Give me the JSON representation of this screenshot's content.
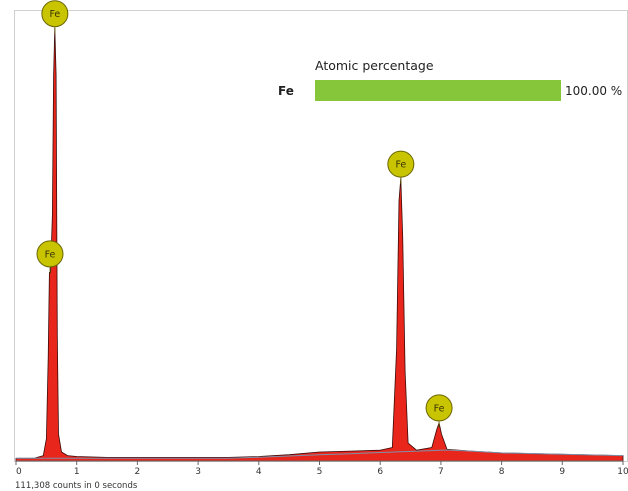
{
  "chart_data": {
    "type": "area",
    "title": "",
    "xlabel": "",
    "ylabel": "",
    "xlim": [
      0,
      10
    ],
    "ylim": [
      0,
      1
    ],
    "x_ticks": [
      "0",
      "1",
      "2",
      "3",
      "4",
      "5",
      "6",
      "7",
      "8",
      "9",
      "10"
    ],
    "status_text": "111,308 counts in 0 seconds",
    "fill_color": "#e8261c",
    "outline_color": "#3a0a08",
    "background_curve_color": "#7f8fa8",
    "peak_marker_fill": "#c9c400",
    "series": [
      {
        "points": [
          [
            0.0,
            0.006
          ],
          [
            0.3,
            0.006
          ],
          [
            0.45,
            0.012
          ],
          [
            0.5,
            0.05
          ],
          [
            0.53,
            0.23
          ],
          [
            0.55,
            0.42
          ],
          [
            0.57,
            0.42
          ],
          [
            0.6,
            0.55
          ],
          [
            0.62,
            0.86
          ],
          [
            0.64,
            0.965
          ],
          [
            0.66,
            0.86
          ],
          [
            0.68,
            0.28
          ],
          [
            0.7,
            0.06
          ],
          [
            0.75,
            0.02
          ],
          [
            0.85,
            0.012
          ],
          [
            1.0,
            0.01
          ],
          [
            1.5,
            0.008
          ],
          [
            2.0,
            0.008
          ],
          [
            2.5,
            0.008
          ],
          [
            3.0,
            0.008
          ],
          [
            3.5,
            0.008
          ],
          [
            4.0,
            0.01
          ],
          [
            4.5,
            0.014
          ],
          [
            5.0,
            0.02
          ],
          [
            5.5,
            0.022
          ],
          [
            6.0,
            0.024
          ],
          [
            6.2,
            0.03
          ],
          [
            6.27,
            0.25
          ],
          [
            6.31,
            0.58
          ],
          [
            6.34,
            0.63
          ],
          [
            6.37,
            0.5
          ],
          [
            6.41,
            0.2
          ],
          [
            6.46,
            0.04
          ],
          [
            6.6,
            0.024
          ],
          [
            6.85,
            0.03
          ],
          [
            6.93,
            0.07
          ],
          [
            6.97,
            0.085
          ],
          [
            7.01,
            0.06
          ],
          [
            7.1,
            0.026
          ],
          [
            7.5,
            0.022
          ],
          [
            8.0,
            0.018
          ],
          [
            9.0,
            0.015
          ],
          [
            10.0,
            0.012
          ]
        ]
      }
    ],
    "peaks": [
      {
        "label": "Fe",
        "x": 0.64,
        "y": 0.965
      },
      {
        "label": "Fe",
        "x": 0.56,
        "y": 0.43
      },
      {
        "label": "Fe",
        "x": 6.34,
        "y": 0.63
      },
      {
        "label": "Fe",
        "x": 6.97,
        "y": 0.087
      }
    ],
    "composition": {
      "title": "Atomic percentage",
      "bar_color": "#86c63a",
      "rows": [
        {
          "element": "Fe",
          "value": 100.0,
          "value_label": "100.00 %"
        }
      ]
    }
  }
}
